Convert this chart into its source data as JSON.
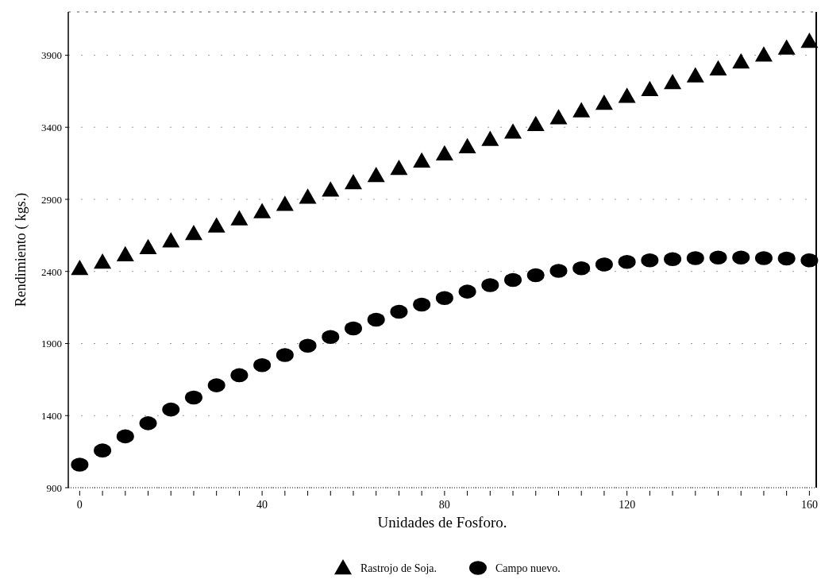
{
  "chart_data": {
    "type": "scatter",
    "xlabel": "Unidades de Fosforo.",
    "ylabel": "Rendimiento ( kgs.)",
    "x": [
      0,
      5,
      10,
      15,
      20,
      25,
      30,
      35,
      40,
      45,
      50,
      55,
      60,
      65,
      70,
      75,
      80,
      85,
      90,
      95,
      100,
      105,
      110,
      115,
      120,
      125,
      130,
      135,
      140,
      145,
      150,
      155,
      160
    ],
    "series": [
      {
        "name": "Rastrojo de Soja.",
        "color": "#000000",
        "marker": "triangle",
        "values": [
          2420,
          2465,
          2515,
          2565,
          2612,
          2663,
          2715,
          2765,
          2815,
          2865,
          2915,
          2965,
          3015,
          3065,
          3115,
          3165,
          3215,
          3265,
          3316,
          3367,
          3419,
          3466,
          3514,
          3566,
          3614,
          3662,
          3709,
          3757,
          3805,
          3853,
          3901,
          3949,
          3996
        ]
      },
      {
        "name": "Campo nuevo.",
        "color": "#000000",
        "marker": "circle",
        "values": [
          1060,
          1158,
          1256,
          1347,
          1442,
          1525,
          1610,
          1680,
          1750,
          1820,
          1885,
          1945,
          2005,
          2065,
          2120,
          2170,
          2215,
          2260,
          2305,
          2341,
          2374,
          2404,
          2422,
          2448,
          2466,
          2477,
          2485,
          2492,
          2496,
          2496,
          2492,
          2489,
          2477
        ]
      }
    ],
    "xlim": [
      -2.5,
      161.5
    ],
    "ylim": [
      900,
      4200
    ],
    "xticks": [
      0,
      {
        "value": 5,
        "label": null
      },
      {
        "value": 10,
        "label": null
      },
      {
        "value": 15,
        "label": null
      },
      {
        "value": 20,
        "label": null
      },
      {
        "value": 25,
        "label": null
      },
      {
        "value": 30,
        "label": null
      },
      {
        "value": 35,
        "label": null
      },
      40,
      {
        "value": 45,
        "label": null
      },
      {
        "value": 50,
        "label": null
      },
      {
        "value": 55,
        "label": null
      },
      {
        "value": 60,
        "label": null
      },
      {
        "value": 65,
        "label": null
      },
      {
        "value": 70,
        "label": null
      },
      {
        "value": 75,
        "label": null
      },
      80,
      {
        "value": 85,
        "label": null
      },
      {
        "value": 90,
        "label": null
      },
      {
        "value": 95,
        "label": null
      },
      {
        "value": 100,
        "label": null
      },
      {
        "value": 105,
        "label": null
      },
      {
        "value": 110,
        "label": null
      },
      {
        "value": 115,
        "label": null
      },
      120,
      {
        "value": 125,
        "label": null
      },
      {
        "value": 130,
        "label": null
      },
      {
        "value": 135,
        "label": null
      },
      {
        "value": 140,
        "label": null
      },
      {
        "value": 145,
        "label": null
      },
      {
        "value": 150,
        "label": null
      },
      {
        "value": 155,
        "label": null
      },
      160
    ],
    "yticks": [
      900,
      1400,
      1900,
      2400,
      2900,
      3400,
      3900
    ],
    "grid": "y",
    "legend": "bottom"
  }
}
